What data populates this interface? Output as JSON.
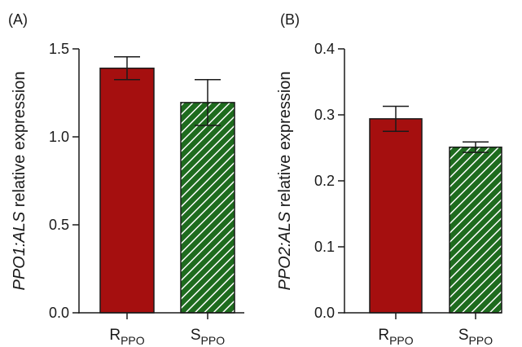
{
  "colors": {
    "r_bar": "#a50f0f",
    "s_bar": "#1e6b1e",
    "axis": "#1a1a1a"
  },
  "chart_data": [
    {
      "type": "bar",
      "panel_label": "(A)",
      "ylabel_italic": "PPO1:ALS",
      "ylabel_rest": " relative expression",
      "ylim": [
        0,
        1.5
      ],
      "yticks": [
        "0.0",
        "0.5",
        "1.0",
        "1.5"
      ],
      "ytick_values": [
        0,
        0.5,
        1.0,
        1.5
      ],
      "categories": [
        {
          "main": "R",
          "sub": "PPO"
        },
        {
          "main": "S",
          "sub": "PPO"
        }
      ],
      "values": [
        1.39,
        1.195
      ],
      "errors": [
        0.065,
        0.13
      ],
      "fills": [
        "solid",
        "hatched"
      ]
    },
    {
      "type": "bar",
      "panel_label": "(B)",
      "ylabel_italic": "PPO2:ALS",
      "ylabel_rest": " relative expression",
      "ylim": [
        0,
        0.4
      ],
      "yticks": [
        "0.0",
        "0.1",
        "0.2",
        "0.3",
        "0.4"
      ],
      "ytick_values": [
        0,
        0.1,
        0.2,
        0.3,
        0.4
      ],
      "categories": [
        {
          "main": "R",
          "sub": "PPO"
        },
        {
          "main": "S",
          "sub": "PPO"
        }
      ],
      "values": [
        0.294,
        0.251
      ],
      "errors": [
        0.019,
        0.008
      ],
      "fills": [
        "solid",
        "hatched"
      ]
    }
  ]
}
